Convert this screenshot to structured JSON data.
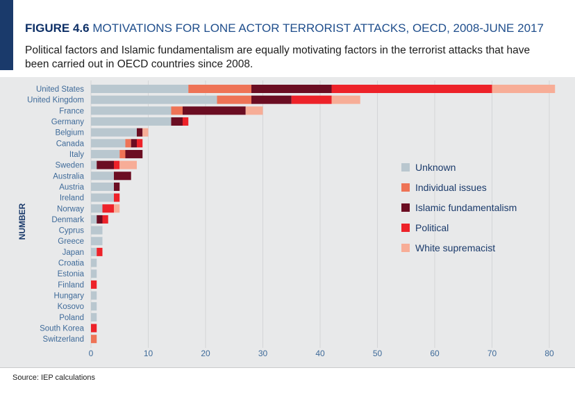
{
  "figure": {
    "label": "FIGURE 4.6",
    "title": "MOTIVATIONS FOR LONE ACTOR TERRORIST ATTACKS, OECD, 2008-JUNE 2017",
    "subtitle": "Political factors and Islamic fundamentalism are equally motivating factors in the terrorist attacks that have been carried out in OECD countries since 2008."
  },
  "source": "Source: IEP calculations",
  "colors": {
    "Unknown": "#b9c7cf",
    "Individual issues": "#ee7356",
    "Islamic fundamentalism": "#6b0d22",
    "Political": "#ed2229",
    "White supremacist": "#f7ad97",
    "accent": "#1a3a6b",
    "title": "#1f4e8c",
    "axis_text": "#3e6a99"
  },
  "chart_data": {
    "type": "bar",
    "orientation": "horizontal",
    "stacked": true,
    "ylabel": "NUMBER",
    "xlabel": "",
    "xlim": [
      0,
      80
    ],
    "xticks": [
      0,
      10,
      20,
      30,
      40,
      50,
      60,
      70,
      80
    ],
    "grid": true,
    "legend_position": "right",
    "categories": [
      "United States",
      "United Kingdom",
      "France",
      "Germany",
      "Belgium",
      "Canada",
      "Italy",
      "Sweden",
      "Australia",
      "Austria",
      "Ireland",
      "Norway",
      "Denmark",
      "Cyprus",
      "Greece",
      "Japan",
      "Croatia",
      "Estonia",
      "Finland",
      "Hungary",
      "Kosovo",
      "Poland",
      "South Korea",
      "Switzerland"
    ],
    "series": [
      {
        "name": "Unknown",
        "values": [
          17,
          22,
          14,
          14,
          8,
          6,
          5,
          1,
          4,
          4,
          4,
          2,
          1,
          2,
          2,
          1,
          1,
          1,
          0,
          1,
          1,
          1,
          0,
          0
        ]
      },
      {
        "name": "Individual issues",
        "values": [
          11,
          6,
          2,
          0,
          0,
          1,
          1,
          0,
          0,
          0,
          0,
          0,
          0,
          0,
          0,
          0,
          0,
          0,
          0,
          0,
          0,
          0,
          0,
          1
        ]
      },
      {
        "name": "Islamic fundamentalism",
        "values": [
          14,
          7,
          11,
          2,
          1,
          1,
          3,
          3,
          3,
          1,
          0,
          0,
          1,
          0,
          0,
          0,
          0,
          0,
          0,
          0,
          0,
          0,
          0,
          0
        ]
      },
      {
        "name": "Political",
        "values": [
          28,
          7,
          0,
          1,
          0,
          1,
          0,
          1,
          0,
          0,
          1,
          2,
          1,
          0,
          0,
          1,
          0,
          0,
          1,
          0,
          0,
          0,
          1,
          0
        ]
      },
      {
        "name": "White supremacist",
        "values": [
          11,
          5,
          3,
          0,
          1,
          0,
          0,
          3,
          0,
          0,
          0,
          1,
          0,
          0,
          0,
          0,
          0,
          0,
          0,
          0,
          0,
          0,
          0,
          0
        ]
      }
    ]
  }
}
